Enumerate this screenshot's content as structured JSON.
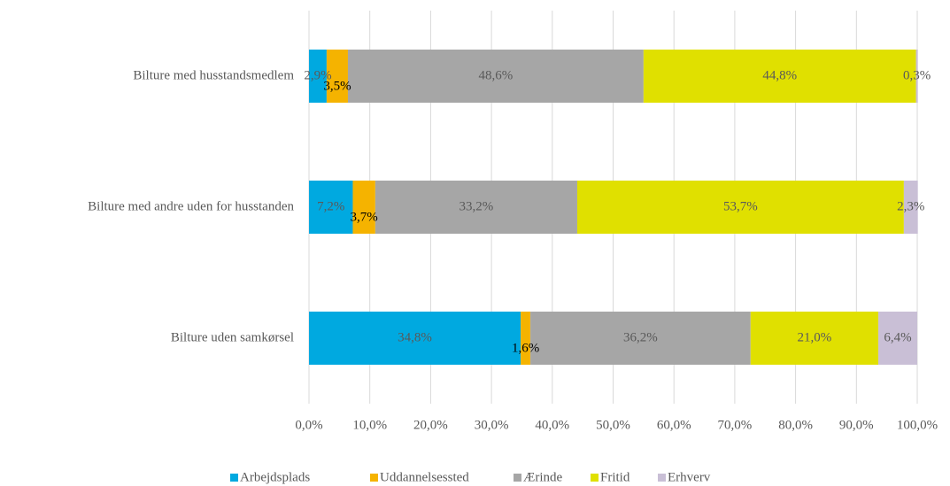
{
  "chart_data": {
    "type": "stacked-bar-horizontal",
    "categories": [
      "Bilture med husstandsmedlem",
      "Bilture med andre uden for husstanden",
      "Bilture uden samkørsel"
    ],
    "series": [
      {
        "name": "Arbejdsplads",
        "color": "#00a9e0",
        "values": [
          2.9,
          7.2,
          34.8
        ],
        "value_labels": [
          "2,9%",
          "7,2%",
          "34,8%"
        ]
      },
      {
        "name": "Uddannelsessted",
        "color": "#f5b300",
        "values": [
          3.5,
          3.7,
          1.6
        ],
        "value_labels": [
          "3,5%",
          "3,7%",
          "1,6%"
        ]
      },
      {
        "name": "Ærinde",
        "color": "#a6a6a6",
        "values": [
          48.6,
          33.2,
          36.2
        ],
        "value_labels": [
          "48,6%",
          "33,2%",
          "36,2%"
        ]
      },
      {
        "name": "Fritid",
        "color": "#e0e000",
        "values": [
          44.8,
          53.7,
          21.0
        ],
        "value_labels": [
          "44,8%",
          "53,7%",
          "21,0%"
        ]
      },
      {
        "name": "Erhverv",
        "color": "#c9bfd6",
        "values": [
          0.3,
          2.3,
          6.4
        ],
        "value_labels": [
          "0,3%",
          "2,3%",
          "6,4%"
        ]
      }
    ],
    "xlim": [
      0,
      100
    ],
    "xticks": [
      {
        "value": 0,
        "label": "0,0%"
      },
      {
        "value": 10,
        "label": "10,0%"
      },
      {
        "value": 20,
        "label": "20,0%"
      },
      {
        "value": 30,
        "label": "30,0%"
      },
      {
        "value": 40,
        "label": "40,0%"
      },
      {
        "value": 50,
        "label": "50,0%"
      },
      {
        "value": 60,
        "label": "60,0%"
      },
      {
        "value": 70,
        "label": "70,0%"
      },
      {
        "value": 80,
        "label": "80,0%"
      },
      {
        "value": 90,
        "label": "90,0%"
      },
      {
        "value": 100,
        "label": "100,0%"
      }
    ],
    "grid": true,
    "legend": "bottom"
  }
}
